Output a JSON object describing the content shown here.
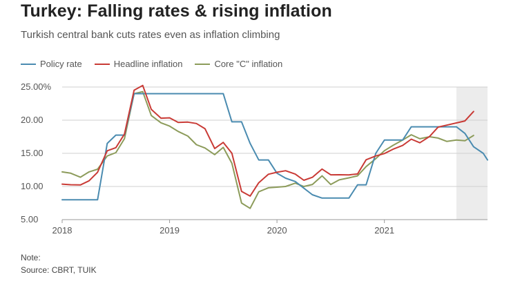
{
  "title": "Turkey: Falling rates & rising inflation",
  "subtitle": "Turkish central bank cuts rates even as inflation climbing",
  "note_label": "Note:",
  "source_label": "Source: CBRT, TUIK",
  "chart_data": {
    "type": "line",
    "title": "Turkey: Falling rates & rising inflation",
    "xlabel": "",
    "ylabel": "",
    "x_ticks": [
      "2018",
      "2019",
      "2020",
      "2021"
    ],
    "x_tick_values": [
      2018.0,
      2019.0,
      2020.0,
      2021.0
    ],
    "xlim": [
      2018.0,
      2021.96
    ],
    "ylim": [
      5,
      25
    ],
    "y_ticks": [
      5,
      10,
      15,
      20,
      25
    ],
    "y_tick_labels": [
      "5.00",
      "10.00",
      "15.00",
      "20.00",
      "25.00%"
    ],
    "highlight_range": [
      2021.67,
      2021.96
    ],
    "legend_position": "top-left",
    "series": [
      {
        "name": "Policy rate",
        "color": "#4a8bb0",
        "points": [
          [
            2018.0,
            8.0
          ],
          [
            2018.08,
            8.0
          ],
          [
            2018.17,
            8.0
          ],
          [
            2018.25,
            8.0
          ],
          [
            2018.33,
            8.0
          ],
          [
            2018.42,
            16.5
          ],
          [
            2018.5,
            17.75
          ],
          [
            2018.58,
            17.75
          ],
          [
            2018.67,
            24.0
          ],
          [
            2018.75,
            24.0
          ],
          [
            2018.83,
            24.0
          ],
          [
            2018.92,
            24.0
          ],
          [
            2019.0,
            24.0
          ],
          [
            2019.08,
            24.0
          ],
          [
            2019.17,
            24.0
          ],
          [
            2019.25,
            24.0
          ],
          [
            2019.33,
            24.0
          ],
          [
            2019.42,
            24.0
          ],
          [
            2019.5,
            24.0
          ],
          [
            2019.58,
            19.75
          ],
          [
            2019.67,
            19.75
          ],
          [
            2019.75,
            16.5
          ],
          [
            2019.83,
            14.0
          ],
          [
            2019.92,
            14.0
          ],
          [
            2020.0,
            12.0
          ],
          [
            2020.08,
            11.25
          ],
          [
            2020.17,
            10.75
          ],
          [
            2020.25,
            9.75
          ],
          [
            2020.33,
            8.75
          ],
          [
            2020.42,
            8.25
          ],
          [
            2020.5,
            8.25
          ],
          [
            2020.58,
            8.25
          ],
          [
            2020.67,
            8.25
          ],
          [
            2020.75,
            10.25
          ],
          [
            2020.83,
            10.25
          ],
          [
            2020.92,
            15.0
          ],
          [
            2021.0,
            17.0
          ],
          [
            2021.08,
            17.0
          ],
          [
            2021.17,
            17.0
          ],
          [
            2021.25,
            19.0
          ],
          [
            2021.33,
            19.0
          ],
          [
            2021.42,
            19.0
          ],
          [
            2021.5,
            19.0
          ],
          [
            2021.58,
            19.0
          ],
          [
            2021.67,
            19.0
          ],
          [
            2021.75,
            18.0
          ],
          [
            2021.83,
            16.0
          ],
          [
            2021.92,
            15.0
          ],
          [
            2021.96,
            14.0
          ]
        ]
      },
      {
        "name": "Headline inflation",
        "color": "#c93a35",
        "points": [
          [
            2018.0,
            10.35
          ],
          [
            2018.08,
            10.26
          ],
          [
            2018.17,
            10.23
          ],
          [
            2018.25,
            10.85
          ],
          [
            2018.33,
            12.15
          ],
          [
            2018.42,
            15.39
          ],
          [
            2018.5,
            15.85
          ],
          [
            2018.58,
            17.9
          ],
          [
            2018.67,
            24.52
          ],
          [
            2018.75,
            25.24
          ],
          [
            2018.83,
            21.62
          ],
          [
            2018.92,
            20.3
          ],
          [
            2019.0,
            20.35
          ],
          [
            2019.08,
            19.67
          ],
          [
            2019.17,
            19.71
          ],
          [
            2019.25,
            19.5
          ],
          [
            2019.33,
            18.71
          ],
          [
            2019.42,
            15.72
          ],
          [
            2019.5,
            16.65
          ],
          [
            2019.58,
            15.01
          ],
          [
            2019.67,
            9.26
          ],
          [
            2019.75,
            8.55
          ],
          [
            2019.83,
            10.56
          ],
          [
            2019.92,
            11.84
          ],
          [
            2020.0,
            12.15
          ],
          [
            2020.08,
            12.37
          ],
          [
            2020.17,
            11.86
          ],
          [
            2020.25,
            10.94
          ],
          [
            2020.33,
            11.39
          ],
          [
            2020.42,
            12.62
          ],
          [
            2020.5,
            11.76
          ],
          [
            2020.58,
            11.77
          ],
          [
            2020.67,
            11.75
          ],
          [
            2020.75,
            11.89
          ],
          [
            2020.83,
            14.03
          ],
          [
            2020.92,
            14.6
          ],
          [
            2021.0,
            14.97
          ],
          [
            2021.08,
            15.61
          ],
          [
            2021.17,
            16.19
          ],
          [
            2021.25,
            17.14
          ],
          [
            2021.33,
            16.59
          ],
          [
            2021.42,
            17.53
          ],
          [
            2021.5,
            18.95
          ],
          [
            2021.58,
            19.25
          ],
          [
            2021.67,
            19.58
          ],
          [
            2021.75,
            19.89
          ],
          [
            2021.83,
            21.31
          ]
        ]
      },
      {
        "name": "Core \"C\" inflation",
        "color": "#8c9b5a",
        "points": [
          [
            2018.0,
            12.2
          ],
          [
            2018.08,
            12.0
          ],
          [
            2018.17,
            11.4
          ],
          [
            2018.25,
            12.2
          ],
          [
            2018.33,
            12.6
          ],
          [
            2018.42,
            14.6
          ],
          [
            2018.5,
            15.1
          ],
          [
            2018.58,
            17.2
          ],
          [
            2018.67,
            24.0
          ],
          [
            2018.75,
            24.3
          ],
          [
            2018.83,
            20.7
          ],
          [
            2018.92,
            19.6
          ],
          [
            2019.0,
            19.1
          ],
          [
            2019.08,
            18.3
          ],
          [
            2019.17,
            17.6
          ],
          [
            2019.25,
            16.3
          ],
          [
            2019.33,
            15.8
          ],
          [
            2019.42,
            14.8
          ],
          [
            2019.5,
            15.9
          ],
          [
            2019.58,
            13.5
          ],
          [
            2019.67,
            7.5
          ],
          [
            2019.75,
            6.7
          ],
          [
            2019.83,
            9.2
          ],
          [
            2019.92,
            9.8
          ],
          [
            2020.0,
            9.9
          ],
          [
            2020.08,
            10.0
          ],
          [
            2020.17,
            10.5
          ],
          [
            2020.25,
            10.0
          ],
          [
            2020.33,
            10.3
          ],
          [
            2020.42,
            11.6
          ],
          [
            2020.5,
            10.3
          ],
          [
            2020.58,
            11.0
          ],
          [
            2020.67,
            11.3
          ],
          [
            2020.75,
            11.6
          ],
          [
            2020.83,
            13.0
          ],
          [
            2020.92,
            14.2
          ],
          [
            2021.0,
            15.4
          ],
          [
            2021.08,
            16.2
          ],
          [
            2021.17,
            17.0
          ],
          [
            2021.25,
            17.8
          ],
          [
            2021.33,
            17.2
          ],
          [
            2021.42,
            17.5
          ],
          [
            2021.5,
            17.3
          ],
          [
            2021.58,
            16.8
          ],
          [
            2021.67,
            17.0
          ],
          [
            2021.75,
            16.9
          ],
          [
            2021.83,
            17.7
          ]
        ]
      }
    ]
  }
}
